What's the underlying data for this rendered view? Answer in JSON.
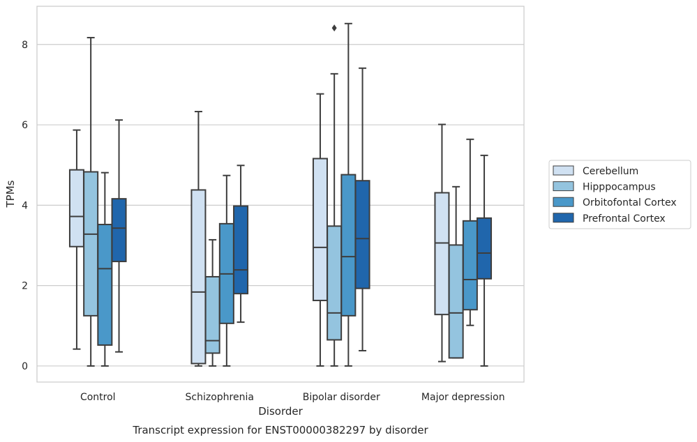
{
  "chart_data": {
    "type": "boxplot",
    "title": "",
    "caption": "Transcript expression for ENST00000382297 by disorder",
    "xlabel": "Disorder",
    "ylabel": "TPMs",
    "ylim": [
      -0.4,
      8.95
    ],
    "yticks": [
      0,
      2,
      4,
      6,
      8
    ],
    "grid": "horizontal",
    "legend_position": "right",
    "categories": [
      "Control",
      "Schizophrenia",
      "Bipolar disorder",
      "Major depression"
    ],
    "series": [
      {
        "name": "Cerebellum",
        "color": "#d0e1f2",
        "boxes": [
          {
            "whislo": 0.42,
            "q1": 2.97,
            "med": 3.72,
            "q3": 4.88,
            "whishi": 5.87,
            "fliers": []
          },
          {
            "whislo": 0.0,
            "q1": 0.06,
            "med": 1.84,
            "q3": 4.38,
            "whishi": 6.33,
            "fliers": []
          },
          {
            "whislo": 0.0,
            "q1": 1.63,
            "med": 2.95,
            "q3": 5.16,
            "whishi": 6.77,
            "fliers": []
          },
          {
            "whislo": 0.11,
            "q1": 1.28,
            "med": 3.06,
            "q3": 4.31,
            "whishi": 6.01,
            "fliers": []
          }
        ]
      },
      {
        "name": "Hipppocampus",
        "color": "#94c4df",
        "boxes": [
          {
            "whislo": 0.0,
            "q1": 1.25,
            "med": 3.28,
            "q3": 4.83,
            "whishi": 8.17,
            "fliers": []
          },
          {
            "whislo": 0.0,
            "q1": 0.32,
            "med": 0.63,
            "q3": 2.22,
            "whishi": 3.14,
            "fliers": []
          },
          {
            "whislo": 0.0,
            "q1": 0.65,
            "med": 1.32,
            "q3": 3.48,
            "whishi": 7.27,
            "fliers": [
              8.41
            ]
          },
          {
            "whislo": 0.2,
            "q1": 0.2,
            "med": 1.32,
            "q3": 3.01,
            "whishi": 4.46,
            "fliers": []
          }
        ]
      },
      {
        "name": "Orbitofontal Cortex",
        "color": "#4a98c9",
        "boxes": [
          {
            "whislo": 0.0,
            "q1": 0.52,
            "med": 2.42,
            "q3": 3.52,
            "whishi": 4.81,
            "fliers": []
          },
          {
            "whislo": 0.0,
            "q1": 1.06,
            "med": 2.29,
            "q3": 3.54,
            "whishi": 4.74,
            "fliers": []
          },
          {
            "whislo": 0.0,
            "q1": 1.25,
            "med": 2.72,
            "q3": 4.76,
            "whishi": 8.52,
            "fliers": []
          },
          {
            "whislo": 1.01,
            "q1": 1.4,
            "med": 2.15,
            "q3": 3.61,
            "whishi": 5.64,
            "fliers": []
          }
        ]
      },
      {
        "name": "Prefrontal Cortex",
        "color": "#2066ac",
        "boxes": [
          {
            "whislo": 0.35,
            "q1": 2.6,
            "med": 3.43,
            "q3": 4.16,
            "whishi": 6.12,
            "fliers": []
          },
          {
            "whislo": 1.09,
            "q1": 1.8,
            "med": 2.39,
            "q3": 3.98,
            "whishi": 4.99,
            "fliers": []
          },
          {
            "whislo": 0.38,
            "q1": 1.93,
            "med": 3.17,
            "q3": 4.61,
            "whishi": 7.41,
            "fliers": []
          },
          {
            "whislo": 0.0,
            "q1": 2.17,
            "med": 2.81,
            "q3": 3.68,
            "whishi": 5.24,
            "fliers": []
          }
        ]
      }
    ]
  }
}
